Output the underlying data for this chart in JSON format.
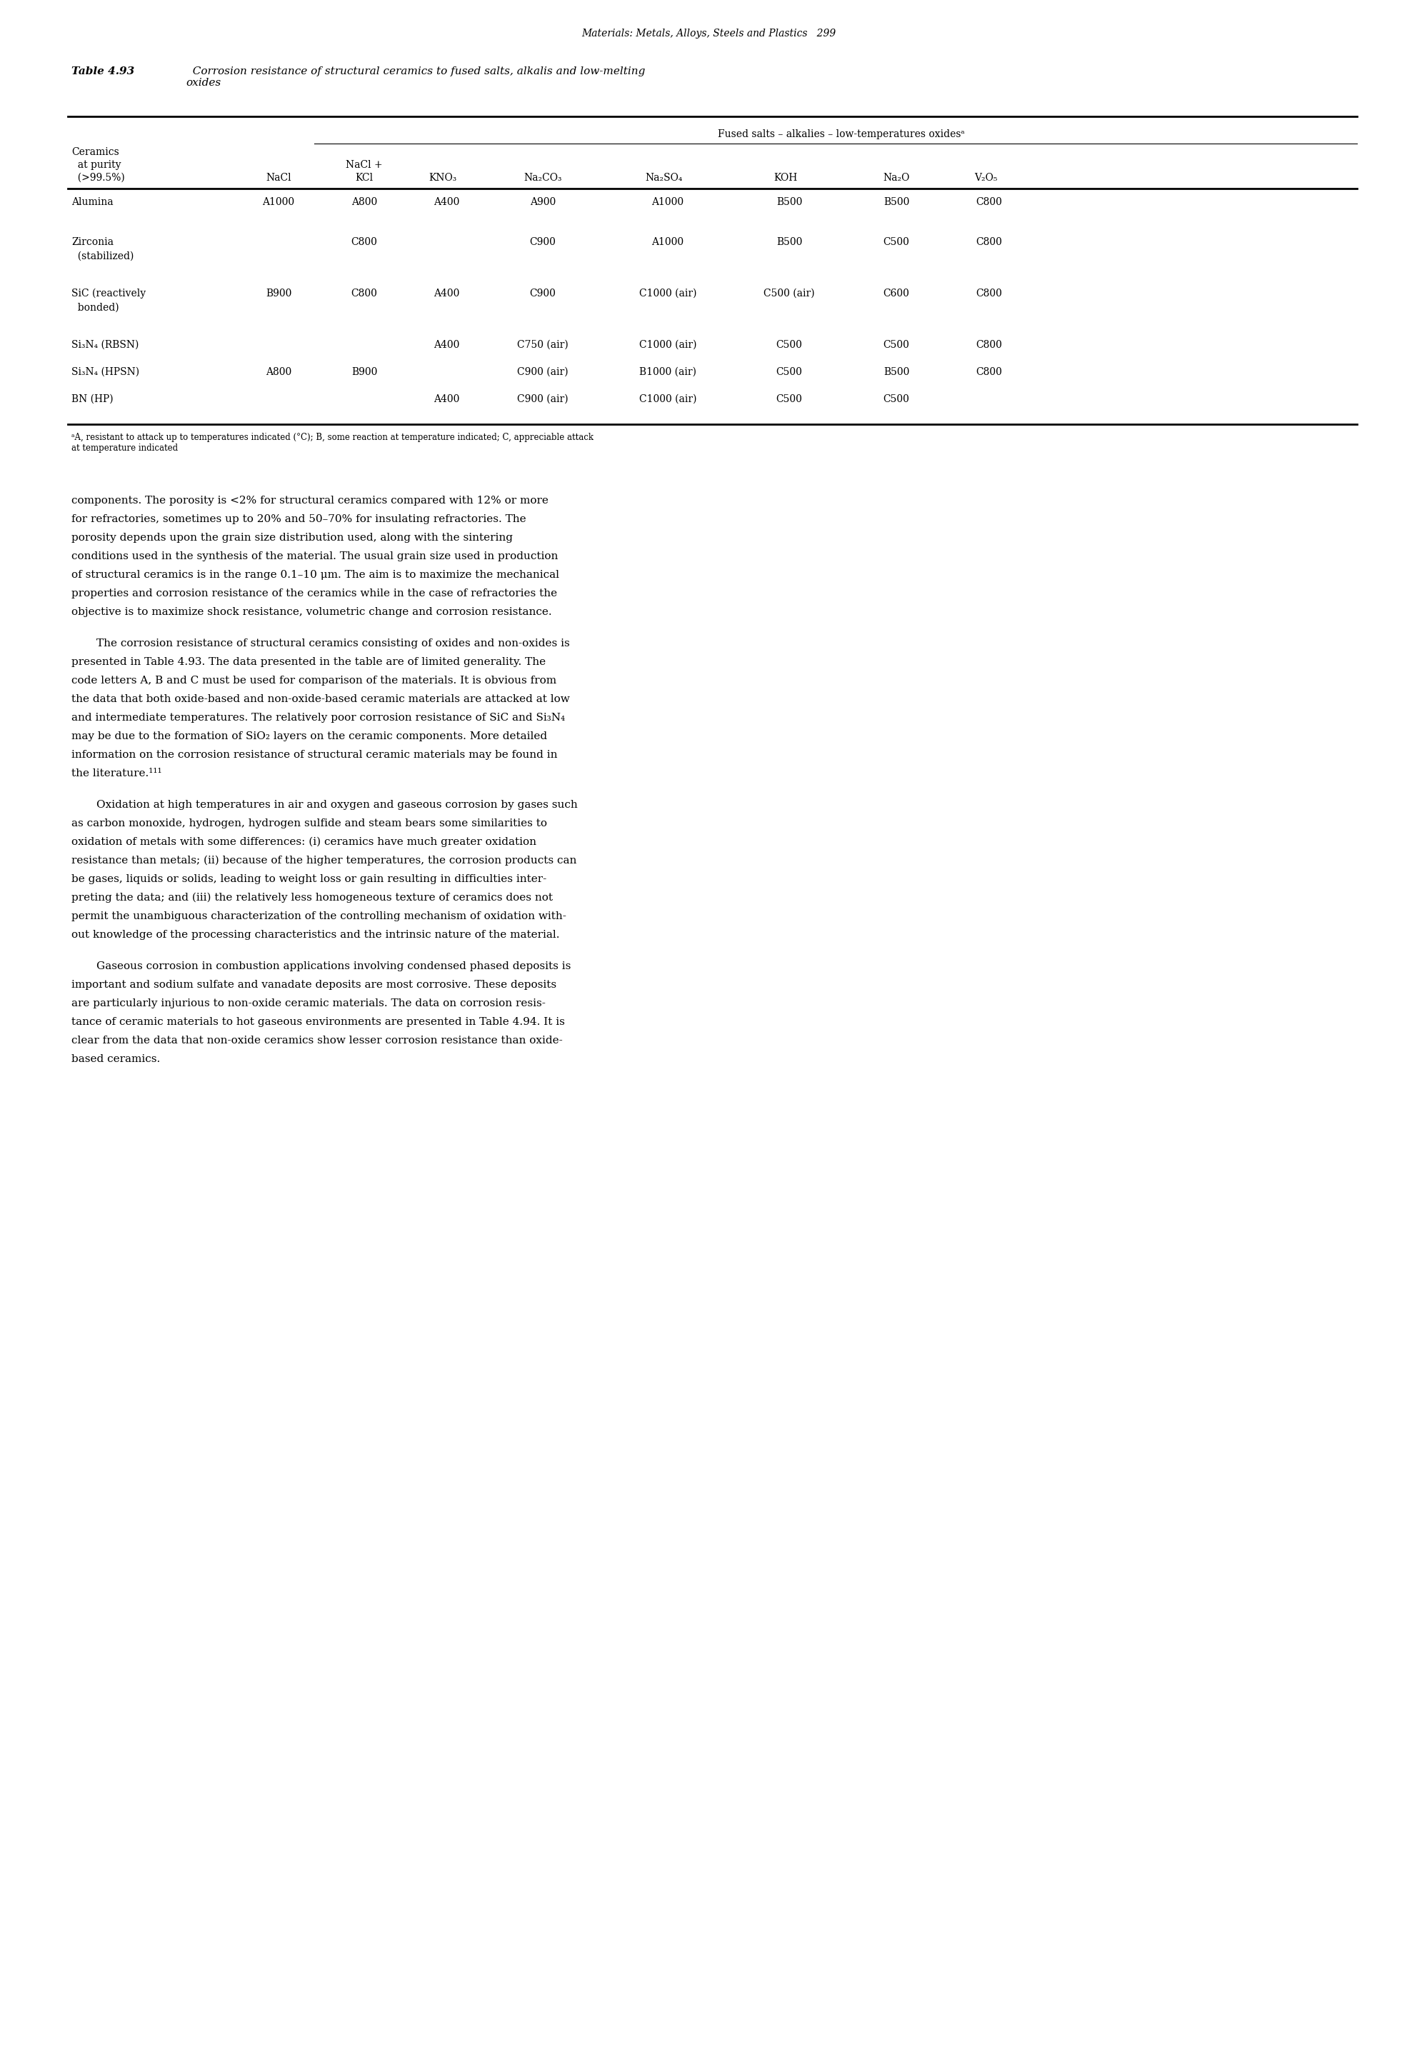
{
  "page_header": "Materials: Metals, Alloys, Steels and Plastics   299",
  "table_title_bold": "Table 4.93",
  "table_title_normal": "  Corrosion resistance of structural ceramics to fused salts, alkalis and low-melting\noxides",
  "col_header_span": "Fused salts – alkalies – low-temperatures oxidesᵃ",
  "col_headers": [
    "Ceramics\nat purity\n(>99.5%)",
    "NaCl",
    "NaCl +\nKCl",
    "KNO₃",
    "Na₂CO₃",
    "Na₂SO₄",
    "KOH",
    "Na₂O",
    "V₂O₅"
  ],
  "rows": [
    [
      "Alumina",
      "A1000",
      "A800",
      "A400",
      "A900",
      "A1000",
      "B500",
      "B500",
      "C800"
    ],
    [
      "Zirconia\n(stabilized)",
      "",
      "C800",
      "",
      "C900",
      "A1000",
      "B500",
      "C500",
      "C800"
    ],
    [
      "SiC (reactively\nbonded)",
      "B900",
      "C800",
      "A400",
      "C900",
      "C1000 (air)",
      "C500 (air)",
      "C600",
      "C800"
    ],
    [
      "Si₃N₄ (RBSN)",
      "",
      "",
      "A400",
      "C750 (air)",
      "C1000 (air)",
      "C500",
      "C500",
      "C800"
    ],
    [
      "Si₃N₄ (HPSN)",
      "A800",
      "B900",
      "",
      "C900 (air)",
      "B1000 (air)",
      "C500",
      "B500",
      "C800"
    ],
    [
      "BN (HP)",
      "",
      "",
      "A400",
      "C900 (air)",
      "C1000 (air)",
      "C500",
      "C500",
      ""
    ]
  ],
  "footnote": "ᵃA, resistant to attack up to temperatures indicated (°C); B, some reaction at temperature indicated; C, appreciable attack\nat temperature indicated",
  "body_text": [
    "components. The porosity is <2% for structural ceramics compared with 12% or more\nfor refractories, sometimes up to 20% and 50–70% for insulating refractories. The\nporosity depends upon the grain size distribution used, along with the sintering\nconditions used in the synthesis of the material. The usual grain size used in production\nof structural ceramics is in the range 0.1–10 μm. The aim is to maximize the mechanical\nproperties and corrosion resistance of the ceramics while in the case of refractories the\nobjective is to maximize shock resistance, volumetric change and corrosion resistance.",
    "The corrosion resistance of structural ceramics consisting of oxides and non-oxides is\npresented in Table 4.93. The data presented in the table are of limited generality. The\ncode letters A, B and C must be used for comparison of the materials. It is obvious from\nthe data that both oxide-based and non-oxide-based ceramic materials are attacked at low\nand intermediate temperatures. The relatively poor corrosion resistance of SiC and Si₃N₄\nmay be due to the formation of SiO₂ layers on the ceramic components. More detailed\ninformation on the corrosion resistance of structural ceramic materials may be found in\nthe literature.¹¹¹",
    "Oxidation at high temperatures in air and oxygen and gaseous corrosion by gases such\nas carbon monoxide, hydrogen, hydrogen sulfide and steam bears some similarities to\noxidation of metals with some differences: (i) ceramics have much greater oxidation\nresistance than metals; (ii) because of the higher temperatures, the corrosion products can\nbe gases, liquids or solids, leading to weight loss or gain resulting in difficulties inter-\npreting the data; and (iii) the relatively less homogeneous texture of ceramics does not\npermit the unambiguous characterization of the controlling mechanism of oxidation with-\nout knowledge of the processing characteristics and the intrinsic nature of the material.",
    "Gaseous corrosion in combustion applications involving condensed phased deposits is\nimportant and sodium sulfate and vanadate deposits are most corrosive. These deposits\nare particularly injurious to non-oxide ceramic materials. The data on corrosion resis-\ntance of ceramic materials to hot gaseous environments are presented in Table 4.94. It is\nclear from the data that non-oxide ceramics show lesser corrosion resistance than oxide-\nbased ceramics."
  ]
}
